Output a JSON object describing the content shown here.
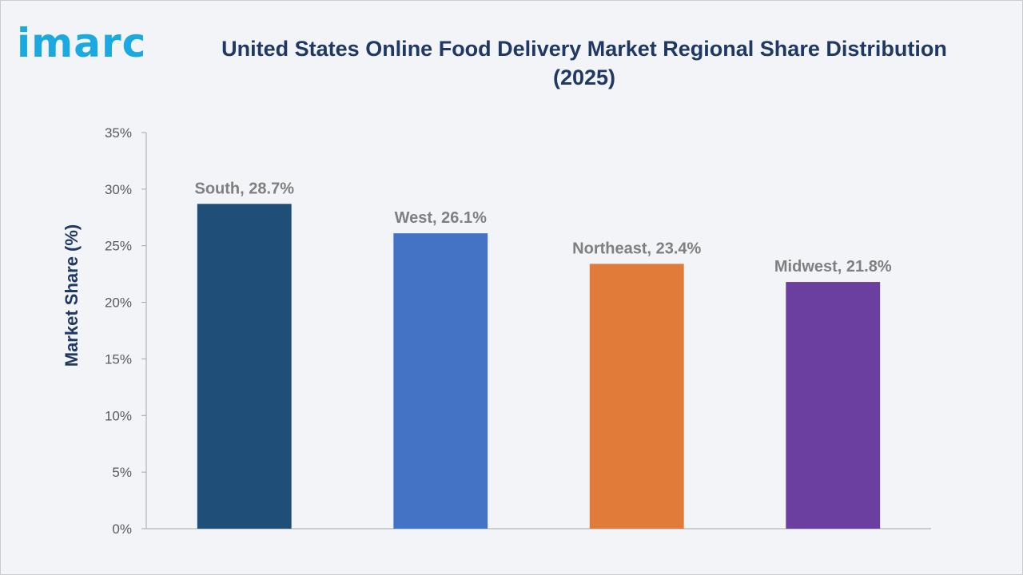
{
  "brand": {
    "logo_text": "imarc",
    "color": "#1aa9e0"
  },
  "chart_data": {
    "type": "bar",
    "title_line1": "United States Online Food Delivery Market Regional Share Distribution",
    "title_line2": "(2025)",
    "xlabel": "",
    "ylabel": "Market Share (%)",
    "ylim": [
      0,
      35
    ],
    "y_ticks": [
      0,
      5,
      10,
      15,
      20,
      25,
      30,
      35
    ],
    "y_tick_suffix": "%",
    "grid": false,
    "legend": "none",
    "categories": [
      "South",
      "West",
      "Northeast",
      "Midwest"
    ],
    "values": [
      28.7,
      26.1,
      23.4,
      21.8
    ],
    "data_labels": [
      "South, 28.7%",
      "West, 26.1%",
      "Northeast, 23.4%",
      "Midwest, 21.8%"
    ],
    "colors": [
      "#1f4e79",
      "#4472c4",
      "#e07b39",
      "#6a3fa0"
    ]
  }
}
